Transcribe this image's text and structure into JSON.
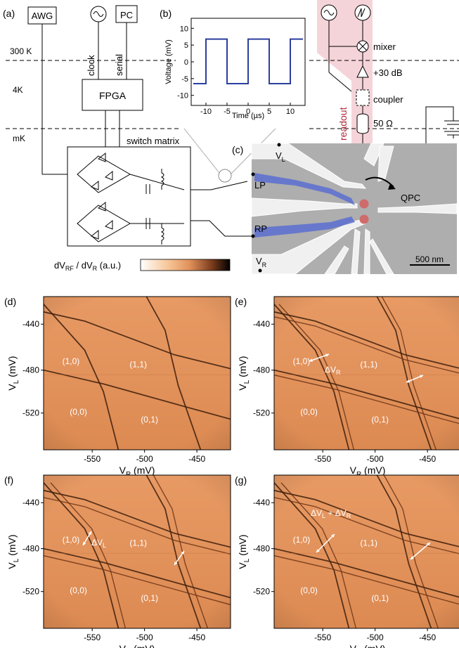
{
  "panel_labels": {
    "a": "(a)",
    "b": "(b)",
    "c": "(c)",
    "d": "(d)",
    "e": "(e)",
    "f": "(f)",
    "g": "(g)"
  },
  "schematic": {
    "awg": "AWG",
    "pc": "PC",
    "clock": "clock",
    "serial": "serial",
    "fpga": "FPGA",
    "t300": "300 K",
    "t4": "4K",
    "tmk": "mK",
    "switch_matrix": "switch matrix",
    "mixer": "mixer",
    "amp": "+30 dB",
    "coupler": "coupler",
    "load": "50 Ω",
    "readout": "readout"
  },
  "inset_chart": {
    "type": "line",
    "xlabel": "Time (µs)",
    "ylabel": "Voltage (mV)",
    "xlim": [
      -13.5,
      13.5
    ],
    "ylim": [
      -13,
      13
    ],
    "xticks": [
      "-10",
      "-5",
      "0",
      "5",
      "10"
    ],
    "yticks": [
      "10",
      "5",
      "0",
      "-5",
      "-10"
    ],
    "color": "#2c3e9f"
  },
  "chart_data": {
    "type": "line",
    "xlabel": "Time (µs)",
    "ylabel": "Voltage (mV)",
    "x": [
      -13,
      -10,
      -10,
      -5,
      -5,
      0,
      0,
      5,
      5,
      10,
      10,
      13
    ],
    "y": [
      -6.5,
      -6.5,
      6.8,
      6.8,
      -6.5,
      -6.5,
      6.8,
      6.8,
      -6.5,
      -6.5,
      6.8,
      6.8
    ],
    "xlim": [
      -13.5,
      13.5
    ],
    "ylim": [
      -13,
      13
    ]
  },
  "sem": {
    "vl": "V",
    "vl_sub": "L",
    "vr": "V",
    "vr_sub": "R",
    "lp": "LP",
    "rp": "RP",
    "qpc": "QPC",
    "scale": "500 nm"
  },
  "colorbar": {
    "label_pre": "dV",
    "label_sub1": "RF",
    "label_mid": " / dV",
    "label_sub2": "R",
    "label_post": " (a.u.)"
  },
  "maps": {
    "xticks": [
      "-550",
      "-500",
      "-450"
    ],
    "yticks": [
      "-440",
      "-480",
      "-520"
    ],
    "xlabel": "V",
    "xlabel_sub": "R",
    "xunit": " (mV)",
    "ylabel": "V",
    "ylabel_sub": "L",
    "yunit": " (mV)",
    "region_10": "(1,0)",
    "region_11": "(1,1)",
    "region_00": "(0,0)",
    "region_01": "(0,1)",
    "annot_e": "ΔV",
    "annot_e_sub": "R",
    "annot_f": "ΔV",
    "annot_f_sub": "L",
    "annot_g1": "ΔV",
    "annot_g1_sub": "L",
    "annot_g2": " + ΔV",
    "annot_g2_sub": "R"
  }
}
